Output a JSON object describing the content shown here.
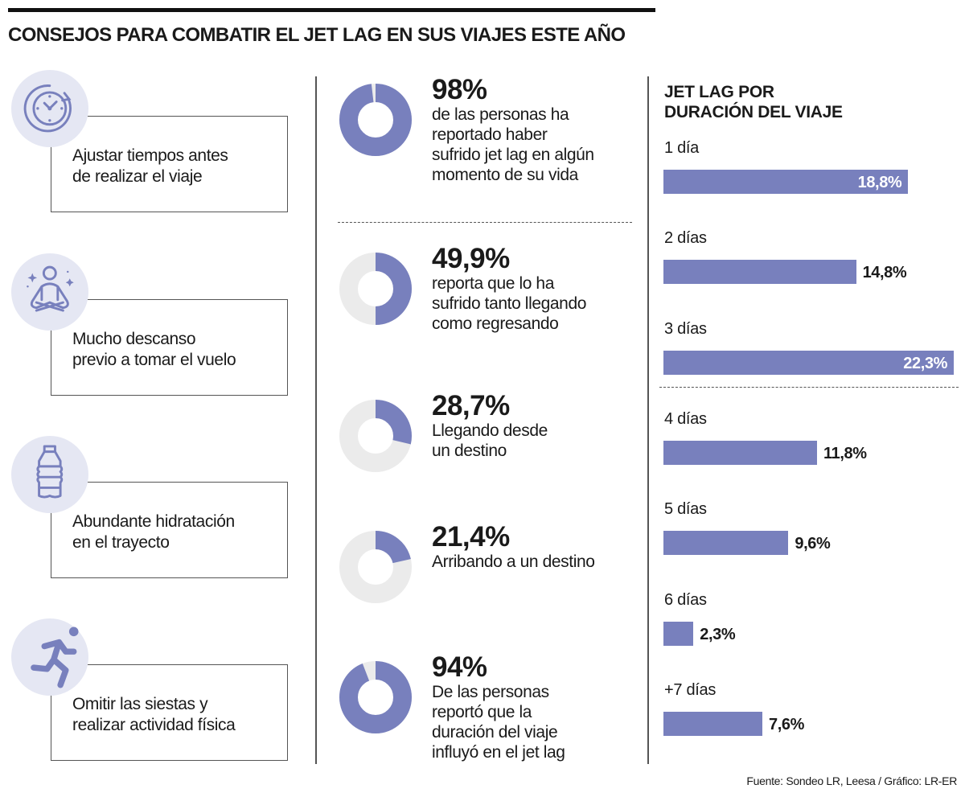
{
  "title": "CONSEJOS PARA COMBATIR EL JET LAG EN SUS VIAJES ESTE AÑO",
  "colors": {
    "accent": "#7880bd",
    "icon_bg": "#e5e7f3",
    "donut_bg": "#ebebeb"
  },
  "tips": [
    {
      "icon": "clock-refresh-icon",
      "lines": [
        "Ajustar tiempos antes",
        "de realizar el viaje"
      ]
    },
    {
      "icon": "meditation-icon",
      "lines": [
        "Mucho descanso",
        "previo a tomar el vuelo"
      ]
    },
    {
      "icon": "water-bottle-icon",
      "lines": [
        "Abundante hidratación",
        "en el trayecto"
      ]
    },
    {
      "icon": "running-person-icon",
      "lines": [
        "Omitir las siestas y",
        "realizar actividad física"
      ]
    }
  ],
  "stats": [
    {
      "value": "98%",
      "percent": 98,
      "lines": [
        "de las personas ha",
        "reportado haber",
        "sufrido jet lag en algún",
        "momento de su vida"
      ]
    },
    {
      "value": "49,9%",
      "percent": 49.9,
      "lines": [
        "reporta que lo ha",
        "sufrido tanto llegando",
        "como regresando"
      ]
    },
    {
      "value": "28,7%",
      "percent": 28.7,
      "lines": [
        "Llegando desde",
        "un destino"
      ]
    },
    {
      "value": "21,4%",
      "percent": 21.4,
      "lines": [
        "Arribando a un destino"
      ]
    },
    {
      "value": "94%",
      "percent": 94,
      "lines": [
        "De las personas",
        "reportó que la",
        "duración del viaje",
        "influyó en el jet lag"
      ]
    }
  ],
  "chart_data": {
    "type": "bar",
    "orientation": "horizontal",
    "title_lines": [
      "JET LAG POR",
      "DURACIÓN DEL VIAJE"
    ],
    "categories": [
      "1 día",
      "2 días",
      "3 días",
      "4 días",
      "5 días",
      "6 días",
      "+7 días"
    ],
    "values": [
      18.8,
      14.8,
      22.3,
      11.8,
      9.6,
      2.3,
      7.6
    ],
    "labels": [
      "18,8%",
      "14,8%",
      "22,3%",
      "11,8%",
      "9,6%",
      "2,3%",
      "7,6%"
    ],
    "unit": "%",
    "grid": false
  },
  "footer": "Fuente: Sondeo LR, Leesa / Gráfico: LR-ER"
}
